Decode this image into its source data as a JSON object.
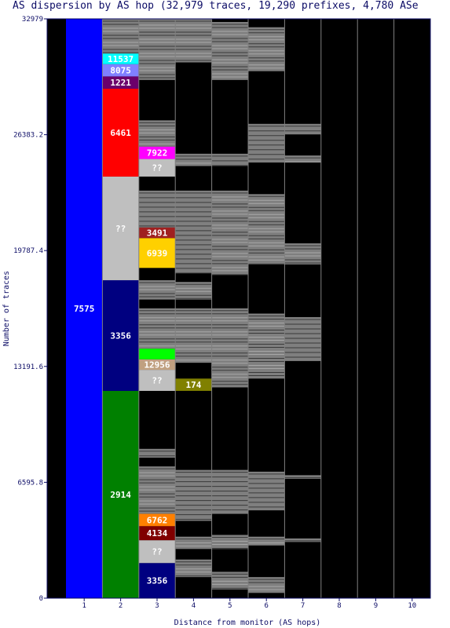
{
  "chart_data": {
    "type": "stacked-bar",
    "title": "AS dispersion by AS hop (32,979 traces, 19,290 prefixes, 4,780 ASe",
    "xlabel": "Distance from monitor (AS hops)",
    "ylabel": "Number of traces",
    "ylim": [
      0,
      32979
    ],
    "y_ticks": [
      "0",
      "6595.8",
      "13191.6",
      "19787.4",
      "26383.2",
      "32979"
    ],
    "x_ticks": [
      "1",
      "2",
      "3",
      "4",
      "5",
      "6",
      "7",
      "8",
      "9",
      "10"
    ],
    "background_color": "#000000",
    "segments": [
      {
        "hop": 1,
        "start": 0,
        "end": 32979,
        "label": "7575",
        "color": "#0000ff"
      },
      {
        "hop": 2,
        "start": 0,
        "end": 11800,
        "label": "2914",
        "color": "#008000"
      },
      {
        "hop": 2,
        "start": 11800,
        "end": 18100,
        "label": "3356",
        "color": "#000080"
      },
      {
        "hop": 2,
        "start": 18100,
        "end": 24000,
        "label": "??",
        "color": "#bfbfbf"
      },
      {
        "hop": 2,
        "start": 24000,
        "end": 29000,
        "label": "6461",
        "color": "#ff0000"
      },
      {
        "hop": 2,
        "start": 29000,
        "end": 29700,
        "label": "1221",
        "color": "#6b006b"
      },
      {
        "hop": 2,
        "start": 29700,
        "end": 30400,
        "label": "8075",
        "color": "#8080ff"
      },
      {
        "hop": 2,
        "start": 30400,
        "end": 31000,
        "label": "11537",
        "color": "#00ffff"
      },
      {
        "hop": 3,
        "start": 0,
        "end": 2000,
        "label": "3356",
        "color": "#000080"
      },
      {
        "hop": 3,
        "start": 2000,
        "end": 3300,
        "label": "??",
        "color": "#bfbfbf"
      },
      {
        "hop": 3,
        "start": 3300,
        "end": 4100,
        "label": "4134",
        "color": "#800000"
      },
      {
        "hop": 3,
        "start": 4100,
        "end": 4800,
        "label": "6762",
        "color": "#ff8000"
      },
      {
        "hop": 3,
        "start": 11800,
        "end": 13000,
        "label": "??",
        "color": "#bfbfbf"
      },
      {
        "hop": 3,
        "start": 13000,
        "end": 13600,
        "label": "12956",
        "color": "#c0a080"
      },
      {
        "hop": 3,
        "start": 13600,
        "end": 14200,
        "label": "",
        "color": "#00ff00"
      },
      {
        "hop": 3,
        "start": 18800,
        "end": 20500,
        "label": "6939",
        "color": "#ffd000"
      },
      {
        "hop": 3,
        "start": 20500,
        "end": 21100,
        "label": "3491",
        "color": "#a02020"
      },
      {
        "hop": 3,
        "start": 24000,
        "end": 25000,
        "label": "??",
        "color": "#bfbfbf"
      },
      {
        "hop": 3,
        "start": 25000,
        "end": 25700,
        "label": "7922",
        "color": "#ff00ff"
      },
      {
        "hop": 4,
        "start": 11800,
        "end": 12500,
        "label": "174",
        "color": "#808000"
      }
    ],
    "gray_fill": {
      "hop2": [
        [
          31000,
          32979
        ]
      ],
      "hop3": [
        [
          200,
          1200
        ],
        [
          4800,
          7500
        ],
        [
          8000,
          8500
        ],
        [
          14200,
          16500
        ],
        [
          17000,
          18100
        ],
        [
          21100,
          23200
        ],
        [
          25700,
          27200
        ],
        [
          29500,
          32979
        ]
      ],
      "hop4": [
        [
          1200,
          2200
        ],
        [
          2800,
          3500
        ],
        [
          4400,
          7300
        ],
        [
          13400,
          16500
        ],
        [
          17000,
          18000
        ],
        [
          18500,
          23200
        ],
        [
          24600,
          25300
        ],
        [
          30500,
          32979
        ]
      ],
      "hop5": [
        [
          500,
          1500
        ],
        [
          2800,
          3600
        ],
        [
          4800,
          7300
        ],
        [
          12000,
          16500
        ],
        [
          18400,
          23200
        ],
        [
          24600,
          25300
        ],
        [
          29500,
          32800
        ]
      ],
      "hop6": [
        [
          300,
          1200
        ],
        [
          3000,
          3500
        ],
        [
          5000,
          7200
        ],
        [
          12500,
          16200
        ],
        [
          19000,
          23000
        ],
        [
          24800,
          27000
        ],
        [
          30000,
          32500
        ]
      ],
      "hop7": [
        [
          3200,
          3400
        ],
        [
          6800,
          7000
        ],
        [
          13500,
          16000
        ],
        [
          19000,
          20200
        ],
        [
          24800,
          25200
        ],
        [
          26400,
          27000
        ]
      ]
    }
  }
}
